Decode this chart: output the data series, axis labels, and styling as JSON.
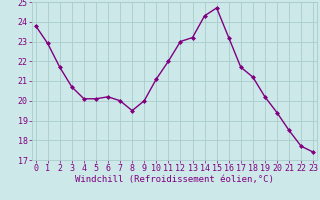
{
  "x": [
    0,
    1,
    2,
    3,
    4,
    5,
    6,
    7,
    8,
    9,
    10,
    11,
    12,
    13,
    14,
    15,
    16,
    17,
    18,
    19,
    20,
    21,
    22,
    23
  ],
  "y": [
    23.8,
    22.9,
    21.7,
    20.7,
    20.1,
    20.1,
    20.2,
    20.0,
    19.5,
    20.0,
    21.1,
    22.0,
    23.0,
    23.2,
    24.3,
    24.7,
    23.2,
    21.7,
    21.2,
    20.2,
    19.4,
    18.5,
    17.7,
    17.4
  ],
  "line_color": "#800080",
  "marker": "D",
  "markersize": 2.0,
  "linewidth": 1.0,
  "bg_color": "#cce8e8",
  "grid_color": "#aacccc",
  "xlabel": "Windchill (Refroidissement éolien,°C)",
  "xlabel_color": "#800080",
  "xlabel_fontsize": 6.5,
  "tick_color": "#800080",
  "tick_fontsize": 6.0,
  "ylim": [
    17,
    25
  ],
  "yticks": [
    17,
    18,
    19,
    20,
    21,
    22,
    23,
    24,
    25
  ],
  "xticks": [
    0,
    1,
    2,
    3,
    4,
    5,
    6,
    7,
    8,
    9,
    10,
    11,
    12,
    13,
    14,
    15,
    16,
    17,
    18,
    19,
    20,
    21,
    22,
    23
  ],
  "xlim": [
    -0.3,
    23.3
  ]
}
